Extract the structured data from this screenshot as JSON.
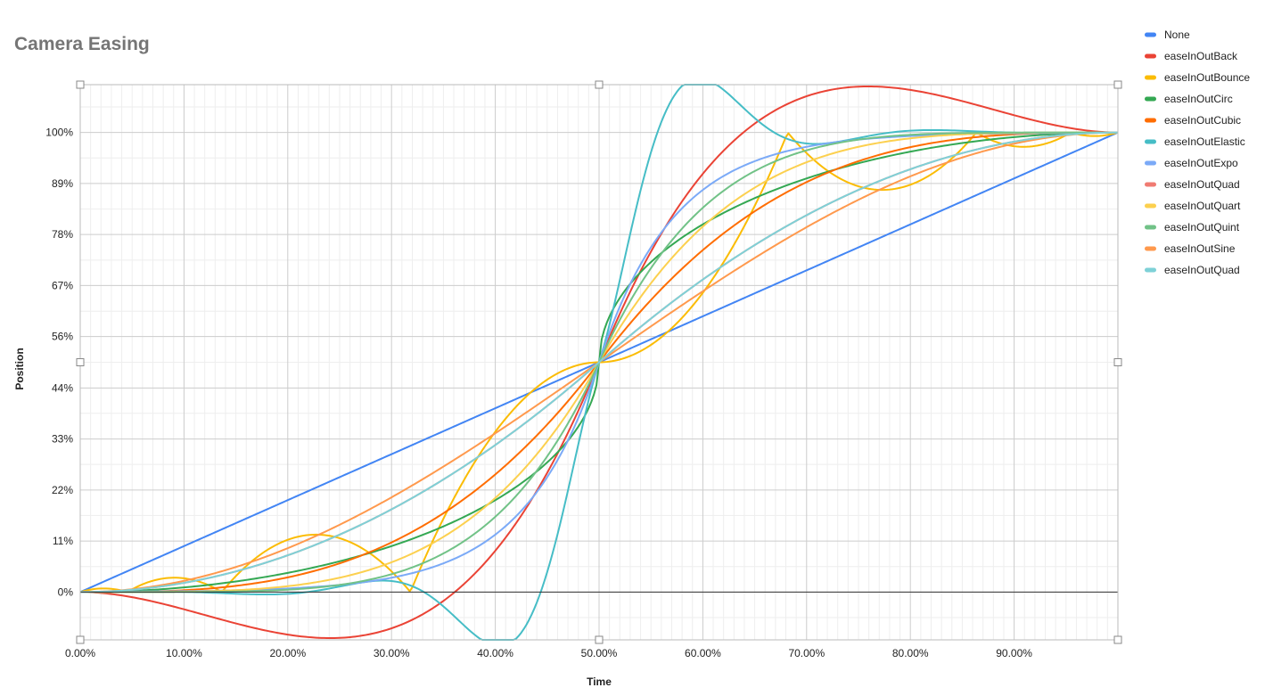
{
  "chart_data": {
    "type": "line",
    "title": "Camera Easing",
    "xlabel": "Time",
    "ylabel": "Position",
    "x_range": [
      0,
      1
    ],
    "ylim": [
      -0.104,
      1.104
    ],
    "x_ticks": [
      "0.00%",
      "10.00%",
      "20.00%",
      "30.00%",
      "40.00%",
      "50.00%",
      "60.00%",
      "70.00%",
      "80.00%",
      "90.00%"
    ],
    "x_tick_values": [
      0,
      0.1,
      0.2,
      0.3,
      0.4,
      0.5,
      0.6,
      0.7,
      0.8,
      0.9
    ],
    "y_ticks": [
      "0%",
      "11%",
      "22%",
      "33%",
      "44%",
      "56%",
      "67%",
      "78%",
      "89%",
      "100%"
    ],
    "y_tick_values": [
      0,
      0.111,
      0.222,
      0.333,
      0.444,
      0.556,
      0.667,
      0.778,
      0.889,
      1.0
    ],
    "grid": true,
    "legend_position": "right",
    "series": [
      {
        "name": "None",
        "easing": "linear",
        "color": "#4285f4"
      },
      {
        "name": "easeInOutBack",
        "easing": "easeInOutBack",
        "color": "#ea4335"
      },
      {
        "name": "easeInOutBounce",
        "easing": "easeInOutBounce",
        "color": "#fbbc04"
      },
      {
        "name": "easeInOutCirc",
        "easing": "easeInOutCirc",
        "color": "#34a853"
      },
      {
        "name": "easeInOutCubic",
        "easing": "easeInOutCubic",
        "color": "#ff6d01"
      },
      {
        "name": "easeInOutElastic",
        "easing": "easeInOutElastic",
        "color": "#46bdc6"
      },
      {
        "name": "easeInOutExpo",
        "easing": "easeInOutExpo",
        "color": "#7baaf7"
      },
      {
        "name": "easeInOutQuad",
        "easing": "easeInOutQuad",
        "color": "#f07b72"
      },
      {
        "name": "easeInOutQuart",
        "easing": "easeInOutQuart",
        "color": "#fcd04f"
      },
      {
        "name": "easeInOutQuint",
        "easing": "easeInOutQuint",
        "color": "#71c287"
      },
      {
        "name": "easeInOutSine",
        "easing": "easeInOutSine",
        "color": "#ff994d"
      },
      {
        "name": "easeInOutQuad",
        "easing": "easeInOutQuad",
        "color": "#7ed1d7"
      }
    ]
  }
}
